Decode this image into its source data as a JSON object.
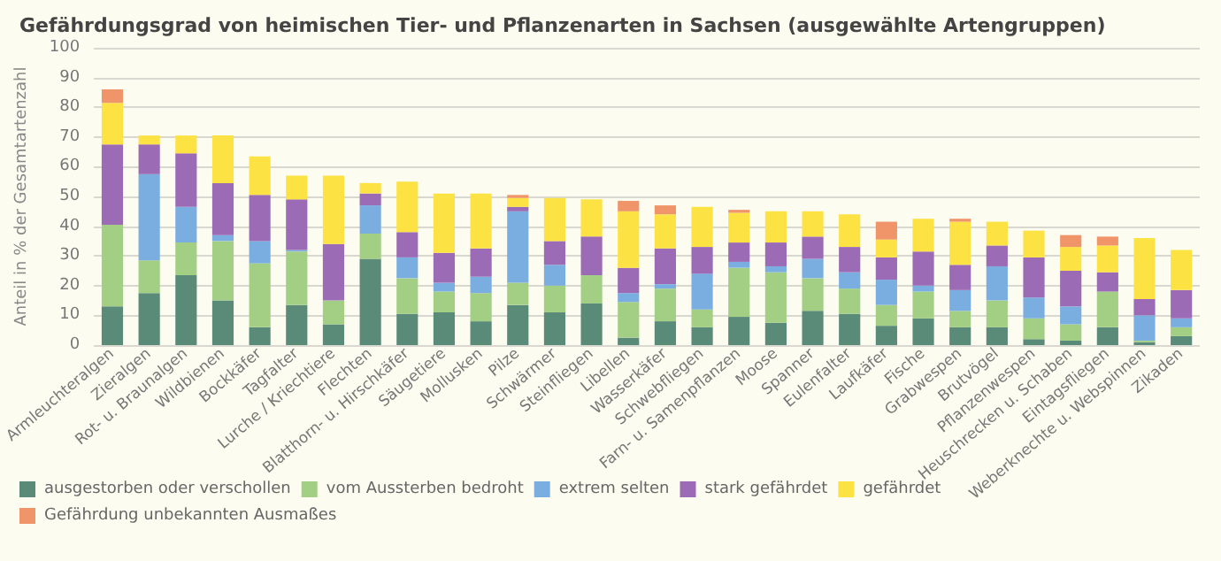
{
  "chart_data": {
    "type": "bar",
    "stacked": true,
    "title": "Gefährdungsgrad von heimischen Tier- und Pflanzenarten in Sachsen (ausgewählte Artengruppen)",
    "ylabel": "Anteil in % der Gesamtartenzahl",
    "categories": [
      "Armleuchteralgen",
      "Zieralgen",
      "Rot- u. Braunalgen",
      "Wildbienen",
      "Bockkäfer",
      "Tagfalter",
      "Lurche / Kriechtiere",
      "Flechten",
      "Blatthorn- u. Hirschkäfer",
      "Säugetiere",
      "Mollusken",
      "Pilze",
      "Schwärmer",
      "Steinfliegen",
      "Libellen",
      "Wasserkäfer",
      "Schwebfliegen",
      "Farn- u. Samenpflanzen",
      "Moose",
      "Spanner",
      "Eulenfalter",
      "Laufkäfer",
      "Fische",
      "Grabwespen",
      "Brutvögel",
      "Pflanzenwespen",
      "Heuschrecken u. Schaben",
      "Eintagsfliegen",
      "Weberknechte u. Webspinnen",
      "Zikaden"
    ],
    "series": [
      {
        "name": "ausgestorben oder verschollen",
        "color": "#5a8a78",
        "values": [
          13,
          17.5,
          23.5,
          15,
          6,
          13.5,
          7,
          29,
          10.5,
          11,
          8,
          13.5,
          11,
          14,
          2.5,
          8,
          6,
          9.5,
          7.5,
          11.5,
          10.5,
          6.5,
          9,
          6,
          6,
          2,
          1.5,
          6,
          1,
          3
        ]
      },
      {
        "name": "vom Aussterben bedroht",
        "color": "#a3cf85",
        "values": [
          27.5,
          11,
          11,
          20,
          21.5,
          18,
          8,
          8.5,
          12,
          7,
          9.5,
          7.5,
          9,
          9.5,
          12,
          11,
          6,
          16.5,
          17,
          11,
          8.5,
          7,
          9,
          5.5,
          9,
          7,
          5.5,
          12,
          0.5,
          3
        ]
      },
      {
        "name": "extrem selten",
        "color": "#7aaee0",
        "values": [
          0,
          29,
          12,
          2,
          7.5,
          0.5,
          0,
          9.5,
          7,
          3,
          5.5,
          24,
          7,
          0,
          3,
          1.5,
          12,
          2,
          2,
          6.5,
          5.5,
          8.5,
          2,
          7,
          11.5,
          7,
          6,
          0,
          8.5,
          3
        ]
      },
      {
        "name": "stark gefährdet",
        "color": "#9b6bb5",
        "values": [
          27,
          10,
          18,
          17.5,
          15.5,
          17,
          19,
          4,
          8.5,
          10,
          9.5,
          1.5,
          8,
          13,
          8.5,
          12,
          9,
          6.5,
          8,
          7.5,
          8.5,
          7.5,
          11.5,
          8.5,
          7,
          13.5,
          12,
          6.5,
          5.5,
          9.5
        ]
      },
      {
        "name": "gefährdet",
        "color": "#fde244",
        "values": [
          14,
          3,
          6,
          16,
          13,
          8,
          23,
          3.5,
          17,
          20,
          18.5,
          3,
          14.5,
          12.5,
          19,
          11.5,
          13.5,
          10,
          10.5,
          8.5,
          11,
          6,
          11,
          14.5,
          8,
          9,
          8,
          9,
          20.5,
          13.5
        ]
      },
      {
        "name": "Gefährdung unbekannten Ausmaßes",
        "color": "#f0956a",
        "values": [
          4.5,
          0,
          0,
          0,
          0,
          0,
          0,
          0,
          0,
          0,
          0,
          1,
          0,
          0,
          3.5,
          3,
          0,
          1,
          0,
          0,
          0,
          6,
          0,
          1,
          0,
          0,
          4,
          3,
          0,
          0
        ]
      }
    ],
    "ylim": [
      0,
      100
    ],
    "yticks": [
      0,
      10,
      20,
      30,
      40,
      50,
      60,
      70,
      80,
      90,
      100
    ],
    "grid": "y",
    "legend": "bottom"
  }
}
